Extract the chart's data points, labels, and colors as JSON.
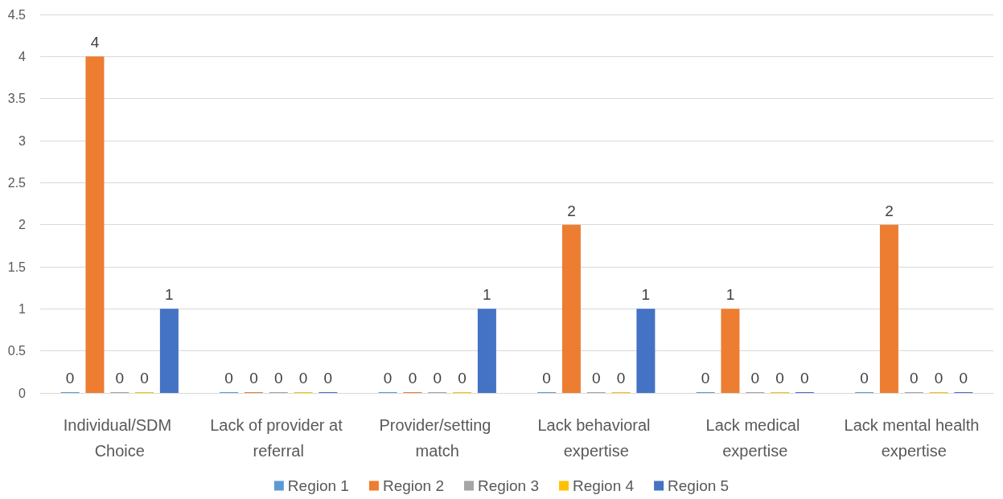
{
  "chart_data": {
    "type": "bar",
    "categories": [
      "Individual/SDM Choice",
      "Lack of provider at referral",
      "Provider/setting match",
      "Lack behavioral expertise",
      "Lack medical expertise",
      "Lack mental health expertise"
    ],
    "series": [
      {
        "name": "Region 1",
        "color": "#5b9bd5",
        "values": [
          0,
          0,
          0,
          0,
          0,
          0
        ]
      },
      {
        "name": "Region 2",
        "color": "#ed7d31",
        "values": [
          4,
          0,
          0,
          2,
          1,
          2
        ]
      },
      {
        "name": "Region 3",
        "color": "#a5a5a5",
        "values": [
          0,
          0,
          0,
          0,
          0,
          0
        ]
      },
      {
        "name": "Region 4",
        "color": "#ffc000",
        "values": [
          0,
          0,
          0,
          0,
          0,
          0
        ]
      },
      {
        "name": "Region 5",
        "color": "#4472c4",
        "values": [
          1,
          0,
          1,
          1,
          0,
          0
        ]
      }
    ],
    "ylim": [
      0,
      4.5
    ],
    "yticks": [
      0,
      0.5,
      1,
      1.5,
      2,
      2.5,
      3,
      3.5,
      4,
      4.5
    ],
    "grid": "y",
    "legend": "bottom",
    "data_labels": true
  }
}
